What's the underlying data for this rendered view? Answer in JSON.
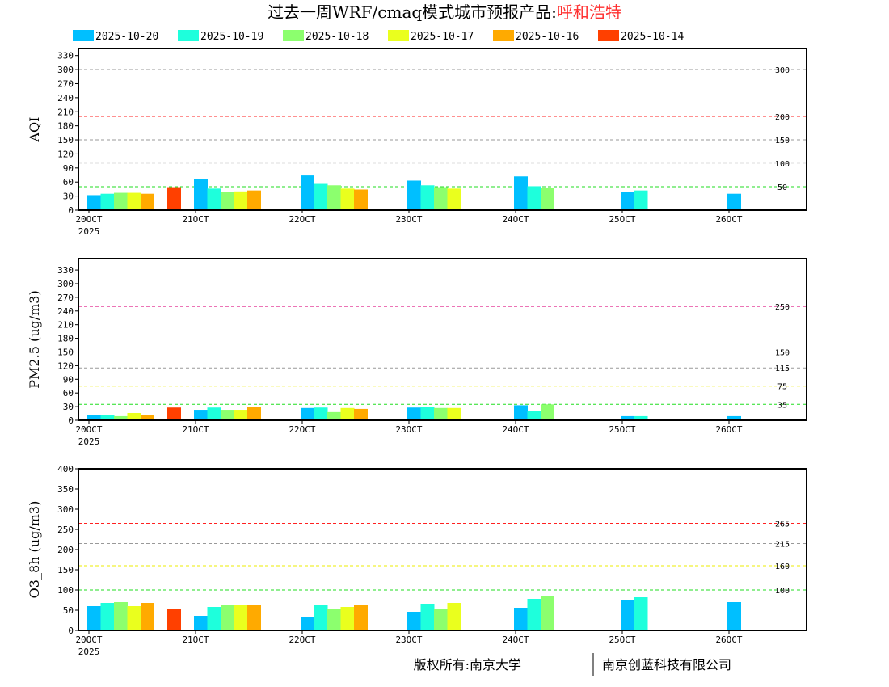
{
  "title": {
    "main": "过去一周WRF/cmaq模式城市预报产品:",
    "city": "呼和浩特"
  },
  "footer": {
    "left": "版权所有:南京大学",
    "right": "南京创蓝科技有限公司"
  },
  "colors": {
    "series": [
      "#00bfff",
      "#1effdc",
      "#8cff6e",
      "#eaff1e",
      "#ffaa00",
      "#ff4000"
    ],
    "city": "#ff3030"
  },
  "chart_data": [
    {
      "type": "bar",
      "ylabel": "AQI",
      "ylim": [
        0,
        345
      ],
      "yticks": [
        0,
        30,
        60,
        90,
        120,
        150,
        180,
        210,
        240,
        270,
        300,
        330
      ],
      "categories": [
        "20OCT",
        "21OCT",
        "22OCT",
        "23OCT",
        "24OCT",
        "25OCT",
        "26OCT"
      ],
      "year_label": "2025",
      "series": [
        {
          "name": "2025-10-20",
          "values": [
            32,
            67,
            74,
            63,
            72,
            39,
            35
          ]
        },
        {
          "name": "2025-10-19",
          "values": [
            35,
            46,
            56,
            53,
            51,
            42,
            null
          ]
        },
        {
          "name": "2025-10-18",
          "values": [
            37,
            39,
            53,
            49,
            47,
            null,
            null
          ]
        },
        {
          "name": "2025-10-17",
          "values": [
            37,
            40,
            46,
            46,
            null,
            null,
            null
          ]
        },
        {
          "name": "2025-10-16",
          "values": [
            35,
            42,
            44,
            null,
            null,
            null,
            null
          ]
        },
        {
          "name": "2025-10-14",
          "values": [
            49,
            null,
            null,
            null,
            null,
            null,
            null
          ]
        }
      ],
      "thresholds": [
        {
          "value": 300,
          "label": "300",
          "color": "#777777"
        },
        {
          "value": 200,
          "label": "200",
          "color": "#ff2020"
        },
        {
          "value": 150,
          "label": "150",
          "color": "#999999"
        },
        {
          "value": 100,
          "label": "100",
          "color": "#dddddd"
        },
        {
          "value": 50,
          "label": "50",
          "color": "#20dd20"
        }
      ]
    },
    {
      "type": "bar",
      "ylabel": "PM2.5 (ug/m3)",
      "ylim": [
        0,
        355
      ],
      "yticks": [
        0,
        30,
        60,
        90,
        120,
        150,
        180,
        210,
        240,
        270,
        300,
        330
      ],
      "categories": [
        "20OCT",
        "21OCT",
        "22OCT",
        "23OCT",
        "24OCT",
        "25OCT",
        "26OCT"
      ],
      "year_label": "2025",
      "series": [
        {
          "name": "2025-10-20",
          "values": [
            11,
            23,
            27,
            28,
            33,
            9,
            9
          ]
        },
        {
          "name": "2025-10-19",
          "values": [
            11,
            28,
            28,
            30,
            21,
            9,
            null
          ]
        },
        {
          "name": "2025-10-18",
          "values": [
            9,
            23,
            18,
            27,
            35,
            null,
            null
          ]
        },
        {
          "name": "2025-10-17",
          "values": [
            16,
            23,
            27,
            27,
            null,
            null,
            null
          ]
        },
        {
          "name": "2025-10-16",
          "values": [
            11,
            30,
            25,
            null,
            null,
            null,
            null
          ]
        },
        {
          "name": "2025-10-14",
          "values": [
            28,
            null,
            null,
            null,
            null,
            null,
            null
          ]
        }
      ],
      "thresholds": [
        {
          "value": 250,
          "label": "250",
          "color": "#e0208a"
        },
        {
          "value": 150,
          "label": "150",
          "color": "#888888"
        },
        {
          "value": 115,
          "label": "115",
          "color": "#999999"
        },
        {
          "value": 75,
          "label": "75",
          "color": "#eeee00"
        },
        {
          "value": 35,
          "label": "35",
          "color": "#20dd20"
        }
      ]
    },
    {
      "type": "bar",
      "ylabel": "O3_8h (ug/m3)",
      "ylim": [
        0,
        400
      ],
      "yticks": [
        0,
        50,
        100,
        150,
        200,
        250,
        300,
        350,
        400
      ],
      "categories": [
        "20OCT",
        "21OCT",
        "22OCT",
        "23OCT",
        "24OCT",
        "25OCT",
        "26OCT"
      ],
      "year_label": "2025",
      "series": [
        {
          "name": "2025-10-20",
          "values": [
            60,
            36,
            32,
            46,
            56,
            76,
            70
          ]
        },
        {
          "name": "2025-10-19",
          "values": [
            68,
            58,
            64,
            66,
            78,
            82,
            null
          ]
        },
        {
          "name": "2025-10-18",
          "values": [
            70,
            62,
            52,
            54,
            84,
            null,
            null
          ]
        },
        {
          "name": "2025-10-17",
          "values": [
            60,
            62,
            58,
            68,
            null,
            null,
            null
          ]
        },
        {
          "name": "2025-10-16",
          "values": [
            68,
            64,
            62,
            null,
            null,
            null,
            null
          ]
        },
        {
          "name": "2025-10-14",
          "values": [
            52,
            null,
            null,
            null,
            null,
            null,
            null
          ]
        }
      ],
      "thresholds": [
        {
          "value": 265,
          "label": "265",
          "color": "#ff2020"
        },
        {
          "value": 215,
          "label": "215",
          "color": "#999999"
        },
        {
          "value": 160,
          "label": "160",
          "color": "#eeee00"
        },
        {
          "value": 100,
          "label": "100",
          "color": "#20dd20"
        }
      ]
    }
  ]
}
